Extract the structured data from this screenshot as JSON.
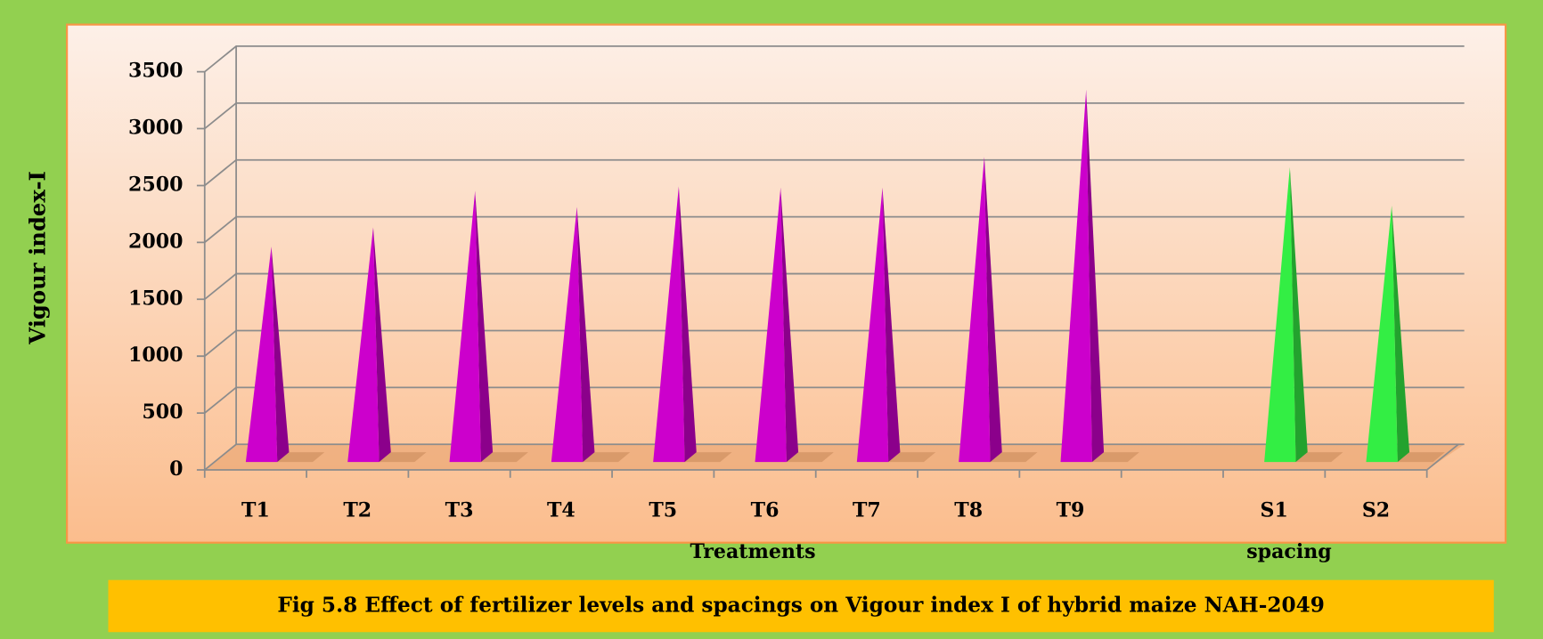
{
  "chart_data": {
    "type": "pyramid",
    "caption": "Fig 5.8 Effect of fertilizer levels  and spacings on Vigour index I of hybrid  maize NAH-2049",
    "y_label": "Vigour index-I",
    "group_labels": [
      "Treatments",
      "spacing"
    ],
    "categories": [
      "T1",
      "T2",
      "T3",
      "T4",
      "T5",
      "T6",
      "T7",
      "T8",
      "T9",
      null,
      "S1",
      "S2"
    ],
    "values": [
      1850,
      2020,
      2340,
      2200,
      2380,
      2370,
      2370,
      2640,
      3230,
      null,
      2550,
      2210
    ],
    "colors": [
      "#cc00cc",
      "#cc00cc",
      "#cc00cc",
      "#cc00cc",
      "#cc00cc",
      "#cc00cc",
      "#cc00cc",
      "#cc00cc",
      "#cc00cc",
      null,
      "#33ee44",
      "#33ee44"
    ],
    "ylim": [
      0,
      3500
    ],
    "yticks": [
      0,
      500,
      1000,
      1500,
      2000,
      2500,
      3000,
      3500
    ],
    "grid": true
  }
}
